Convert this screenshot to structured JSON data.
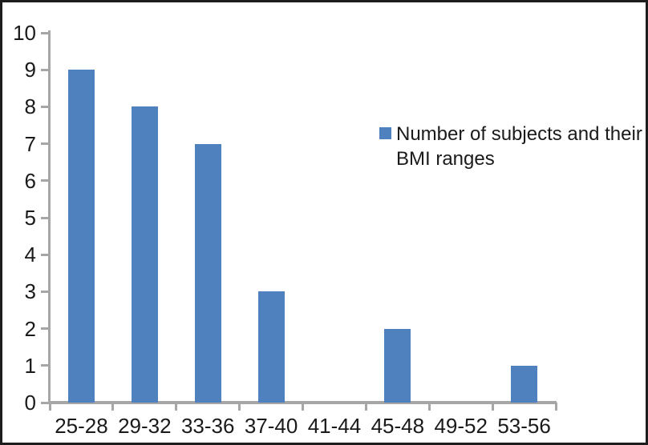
{
  "figure": {
    "background": "#ffffff",
    "border_color": "#1d1d1d"
  },
  "legend": {
    "label": "Number of subjects and their BMI ranges"
  },
  "chart_data": {
    "type": "bar",
    "title": "",
    "xlabel": "",
    "ylabel": "",
    "categories": [
      "25-28",
      "29-32",
      "33-36",
      "37-40",
      "41-44",
      "45-48",
      "49-52",
      "53-56"
    ],
    "values": [
      9,
      8,
      7,
      3,
      0,
      2,
      0,
      1
    ],
    "series_name": "Number of subjects and their BMI ranges",
    "ylim": [
      0,
      10
    ],
    "y_tick_step": 1,
    "y_tick_labels": [
      "0",
      "1",
      "2",
      "3",
      "4",
      "5",
      "6",
      "7",
      "8",
      "9",
      "10"
    ],
    "grid": false,
    "legend_position": "center-right",
    "bar_color": "#4e81bd",
    "axis_color": "#a6a6a6",
    "text_color": "#1a1a1a"
  }
}
